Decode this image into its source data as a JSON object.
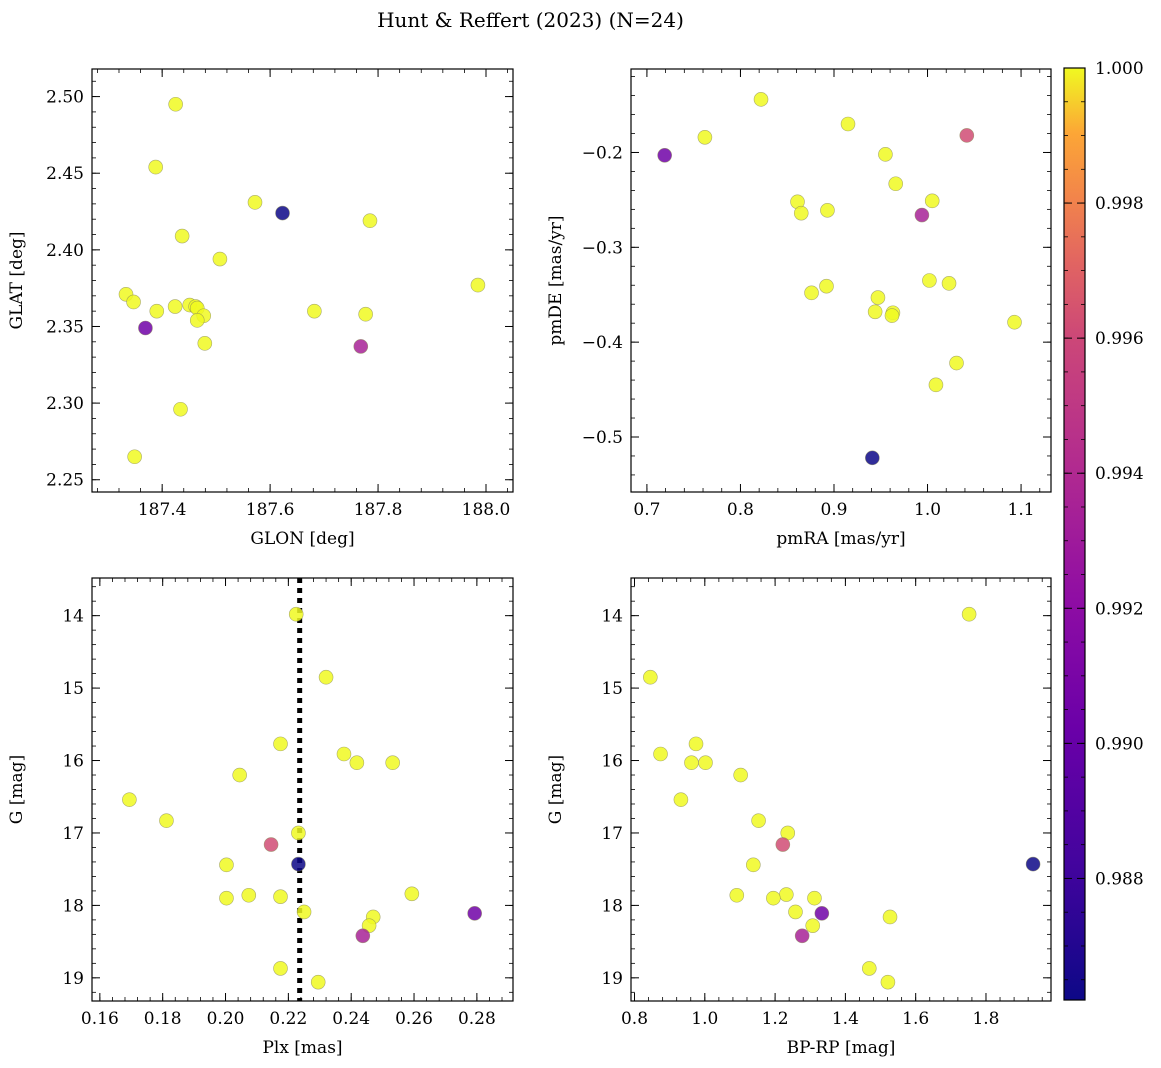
{
  "figure": {
    "title": "Hunt & Reffert (2023) (N=24)"
  },
  "colorbar": {
    "colormap": "plasma",
    "range": [
      0.9862,
      1.0
    ],
    "ticks": [
      0.988,
      0.99,
      0.992,
      0.994,
      0.996,
      0.998,
      1.0
    ],
    "tick_labels": [
      "0.988",
      "0.990",
      "0.992",
      "0.994",
      "0.996",
      "0.998",
      "1.000"
    ]
  },
  "chart_data": [
    {
      "type": "scatter",
      "id": "glon-glat",
      "xlabel": "GLON [deg]",
      "ylabel": "GLAT [deg]",
      "xlim": [
        187.27,
        188.05
      ],
      "ylim": [
        2.242,
        2.518
      ],
      "xticks": [
        187.4,
        187.6,
        187.8,
        188.0
      ],
      "xtick_labels": [
        "187.4",
        "187.6",
        "187.8",
        "188.0"
      ],
      "yticks": [
        2.25,
        2.3,
        2.35,
        2.4,
        2.45,
        2.5
      ],
      "ytick_labels": [
        "2.25",
        "2.30",
        "2.35",
        "2.40",
        "2.45",
        "2.50"
      ],
      "points": [
        {
          "x": 187.425,
          "y": 2.495,
          "c": 1.0
        },
        {
          "x": 187.388,
          "y": 2.454,
          "c": 1.0
        },
        {
          "x": 187.572,
          "y": 2.431,
          "c": 1.0
        },
        {
          "x": 187.623,
          "y": 2.424,
          "c": 0.9862
        },
        {
          "x": 187.785,
          "y": 2.419,
          "c": 1.0
        },
        {
          "x": 187.437,
          "y": 2.409,
          "c": 1.0
        },
        {
          "x": 187.507,
          "y": 2.394,
          "c": 1.0
        },
        {
          "x": 187.985,
          "y": 2.377,
          "c": 1.0
        },
        {
          "x": 187.333,
          "y": 2.371,
          "c": 1.0
        },
        {
          "x": 187.347,
          "y": 2.366,
          "c": 1.0
        },
        {
          "x": 187.424,
          "y": 2.363,
          "c": 1.0
        },
        {
          "x": 187.451,
          "y": 2.364,
          "c": 1.0
        },
        {
          "x": 187.462,
          "y": 2.363,
          "c": 1.0
        },
        {
          "x": 187.465,
          "y": 2.362,
          "c": 1.0
        },
        {
          "x": 187.39,
          "y": 2.36,
          "c": 1.0
        },
        {
          "x": 187.682,
          "y": 2.36,
          "c": 1.0
        },
        {
          "x": 187.777,
          "y": 2.358,
          "c": 1.0
        },
        {
          "x": 187.477,
          "y": 2.357,
          "c": 1.0
        },
        {
          "x": 187.465,
          "y": 2.354,
          "c": 1.0
        },
        {
          "x": 187.369,
          "y": 2.349,
          "c": 0.9905
        },
        {
          "x": 187.479,
          "y": 2.339,
          "c": 1.0
        },
        {
          "x": 187.768,
          "y": 2.337,
          "c": 0.9935
        },
        {
          "x": 187.434,
          "y": 2.296,
          "c": 1.0
        },
        {
          "x": 187.349,
          "y": 2.265,
          "c": 1.0
        }
      ]
    },
    {
      "type": "scatter",
      "id": "pmra-pmde",
      "xlabel": "pmRA [mas/yr]",
      "ylabel": "pmDE [mas/yr]",
      "xlim": [
        0.683,
        1.132
      ],
      "ylim": [
        -0.558,
        -0.112
      ],
      "xticks": [
        0.7,
        0.8,
        0.9,
        1.0,
        1.1
      ],
      "xtick_labels": [
        "0.7",
        "0.8",
        "0.9",
        "1.0",
        "1.1"
      ],
      "yticks": [
        -0.5,
        -0.4,
        -0.3,
        -0.2
      ],
      "ytick_labels": [
        "−0.5",
        "−0.4",
        "−0.3",
        "−0.2"
      ],
      "points": [
        {
          "x": 0.822,
          "y": -0.144,
          "c": 1.0
        },
        {
          "x": 0.915,
          "y": -0.17,
          "c": 1.0
        },
        {
          "x": 0.762,
          "y": -0.184,
          "c": 1.0
        },
        {
          "x": 1.042,
          "y": -0.182,
          "c": 0.9962
        },
        {
          "x": 0.719,
          "y": -0.203,
          "c": 0.9905
        },
        {
          "x": 0.955,
          "y": -0.202,
          "c": 1.0
        },
        {
          "x": 0.966,
          "y": -0.233,
          "c": 1.0
        },
        {
          "x": 1.005,
          "y": -0.251,
          "c": 1.0
        },
        {
          "x": 0.861,
          "y": -0.252,
          "c": 1.0
        },
        {
          "x": 0.865,
          "y": -0.264,
          "c": 1.0
        },
        {
          "x": 0.893,
          "y": -0.261,
          "c": 1.0
        },
        {
          "x": 0.994,
          "y": -0.266,
          "c": 0.9935
        },
        {
          "x": 1.002,
          "y": -0.335,
          "c": 1.0
        },
        {
          "x": 1.023,
          "y": -0.338,
          "c": 1.0
        },
        {
          "x": 0.892,
          "y": -0.341,
          "c": 1.0
        },
        {
          "x": 0.876,
          "y": -0.348,
          "c": 1.0
        },
        {
          "x": 0.947,
          "y": -0.353,
          "c": 1.0
        },
        {
          "x": 0.944,
          "y": -0.368,
          "c": 1.0
        },
        {
          "x": 0.963,
          "y": -0.369,
          "c": 1.0
        },
        {
          "x": 0.962,
          "y": -0.372,
          "c": 1.0
        },
        {
          "x": 1.093,
          "y": -0.379,
          "c": 1.0
        },
        {
          "x": 1.031,
          "y": -0.422,
          "c": 1.0
        },
        {
          "x": 1.009,
          "y": -0.445,
          "c": 1.0
        },
        {
          "x": 0.941,
          "y": -0.522,
          "c": 0.9862
        }
      ]
    },
    {
      "type": "scatter",
      "id": "plx-g",
      "xlabel": "Plx [mas]",
      "ylabel": "G [mag]",
      "xlim": [
        0.1575,
        0.2915
      ],
      "ylim": [
        19.32,
        13.48
      ],
      "y_inverted": true,
      "vline": {
        "x": 0.2236,
        "style": "dotted",
        "color": "#000000"
      },
      "xticks": [
        0.16,
        0.18,
        0.2,
        0.22,
        0.24,
        0.26,
        0.28
      ],
      "xtick_labels": [
        "0.16",
        "0.18",
        "0.20",
        "0.22",
        "0.24",
        "0.26",
        "0.28"
      ],
      "yticks": [
        14,
        15,
        16,
        17,
        18,
        19
      ],
      "ytick_labels": [
        "14",
        "15",
        "16",
        "17",
        "18",
        "19"
      ],
      "points": [
        {
          "x": 0.2225,
          "y": 13.98,
          "c": 1.0
        },
        {
          "x": 0.232,
          "y": 14.85,
          "c": 1.0
        },
        {
          "x": 0.2175,
          "y": 15.77,
          "c": 1.0
        },
        {
          "x": 0.2377,
          "y": 15.91,
          "c": 1.0
        },
        {
          "x": 0.2418,
          "y": 16.03,
          "c": 1.0
        },
        {
          "x": 0.2532,
          "y": 16.03,
          "c": 1.0
        },
        {
          "x": 0.2045,
          "y": 16.2,
          "c": 1.0
        },
        {
          "x": 0.1694,
          "y": 16.54,
          "c": 1.0
        },
        {
          "x": 0.1812,
          "y": 16.83,
          "c": 1.0
        },
        {
          "x": 0.2232,
          "y": 17.0,
          "c": 1.0
        },
        {
          "x": 0.2145,
          "y": 17.16,
          "c": 0.9962
        },
        {
          "x": 0.2232,
          "y": 17.43,
          "c": 0.9862
        },
        {
          "x": 0.2003,
          "y": 17.44,
          "c": 1.0
        },
        {
          "x": 0.2593,
          "y": 17.84,
          "c": 1.0
        },
        {
          "x": 0.2074,
          "y": 17.86,
          "c": 1.0
        },
        {
          "x": 0.2003,
          "y": 17.9,
          "c": 1.0
        },
        {
          "x": 0.2175,
          "y": 17.88,
          "c": 1.0
        },
        {
          "x": 0.225,
          "y": 18.09,
          "c": 1.0
        },
        {
          "x": 0.2793,
          "y": 18.11,
          "c": 0.9905
        },
        {
          "x": 0.247,
          "y": 18.16,
          "c": 1.0
        },
        {
          "x": 0.2457,
          "y": 18.28,
          "c": 1.0
        },
        {
          "x": 0.2437,
          "y": 18.42,
          "c": 0.9935
        },
        {
          "x": 0.2175,
          "y": 18.87,
          "c": 1.0
        },
        {
          "x": 0.2295,
          "y": 19.06,
          "c": 1.0
        }
      ]
    },
    {
      "type": "scatter",
      "id": "bprp-g",
      "xlabel": "BP-RP [mag]",
      "ylabel": "G [mag]",
      "xlim": [
        0.79,
        1.985
      ],
      "ylim": [
        19.32,
        13.48
      ],
      "y_inverted": true,
      "xticks": [
        0.8,
        1.0,
        1.2,
        1.4,
        1.6,
        1.8
      ],
      "xtick_labels": [
        "0.8",
        "1.0",
        "1.2",
        "1.4",
        "1.6",
        "1.8"
      ],
      "yticks": [
        14,
        15,
        16,
        17,
        18,
        19
      ],
      "ytick_labels": [
        "14",
        "15",
        "16",
        "17",
        "18",
        "19"
      ],
      "points": [
        {
          "x": 1.752,
          "y": 13.98,
          "c": 1.0
        },
        {
          "x": 0.845,
          "y": 14.85,
          "c": 1.0
        },
        {
          "x": 0.975,
          "y": 15.77,
          "c": 1.0
        },
        {
          "x": 0.874,
          "y": 15.91,
          "c": 1.0
        },
        {
          "x": 0.962,
          "y": 16.03,
          "c": 1.0
        },
        {
          "x": 1.002,
          "y": 16.03,
          "c": 1.0
        },
        {
          "x": 1.102,
          "y": 16.2,
          "c": 1.0
        },
        {
          "x": 0.932,
          "y": 16.54,
          "c": 1.0
        },
        {
          "x": 1.153,
          "y": 16.83,
          "c": 1.0
        },
        {
          "x": 1.236,
          "y": 17.0,
          "c": 1.0
        },
        {
          "x": 1.222,
          "y": 17.16,
          "c": 0.9962
        },
        {
          "x": 1.934,
          "y": 17.43,
          "c": 0.9862
        },
        {
          "x": 1.138,
          "y": 17.44,
          "c": 1.0
        },
        {
          "x": 1.091,
          "y": 17.86,
          "c": 1.0
        },
        {
          "x": 1.232,
          "y": 17.85,
          "c": 1.0
        },
        {
          "x": 1.312,
          "y": 17.9,
          "c": 1.0
        },
        {
          "x": 1.195,
          "y": 17.9,
          "c": 1.0
        },
        {
          "x": 1.258,
          "y": 18.09,
          "c": 1.0
        },
        {
          "x": 1.333,
          "y": 18.11,
          "c": 0.9905
        },
        {
          "x": 1.527,
          "y": 18.16,
          "c": 1.0
        },
        {
          "x": 1.307,
          "y": 18.28,
          "c": 1.0
        },
        {
          "x": 1.277,
          "y": 18.42,
          "c": 0.9935
        },
        {
          "x": 1.468,
          "y": 18.87,
          "c": 1.0
        },
        {
          "x": 1.521,
          "y": 19.06,
          "c": 1.0
        }
      ]
    }
  ]
}
